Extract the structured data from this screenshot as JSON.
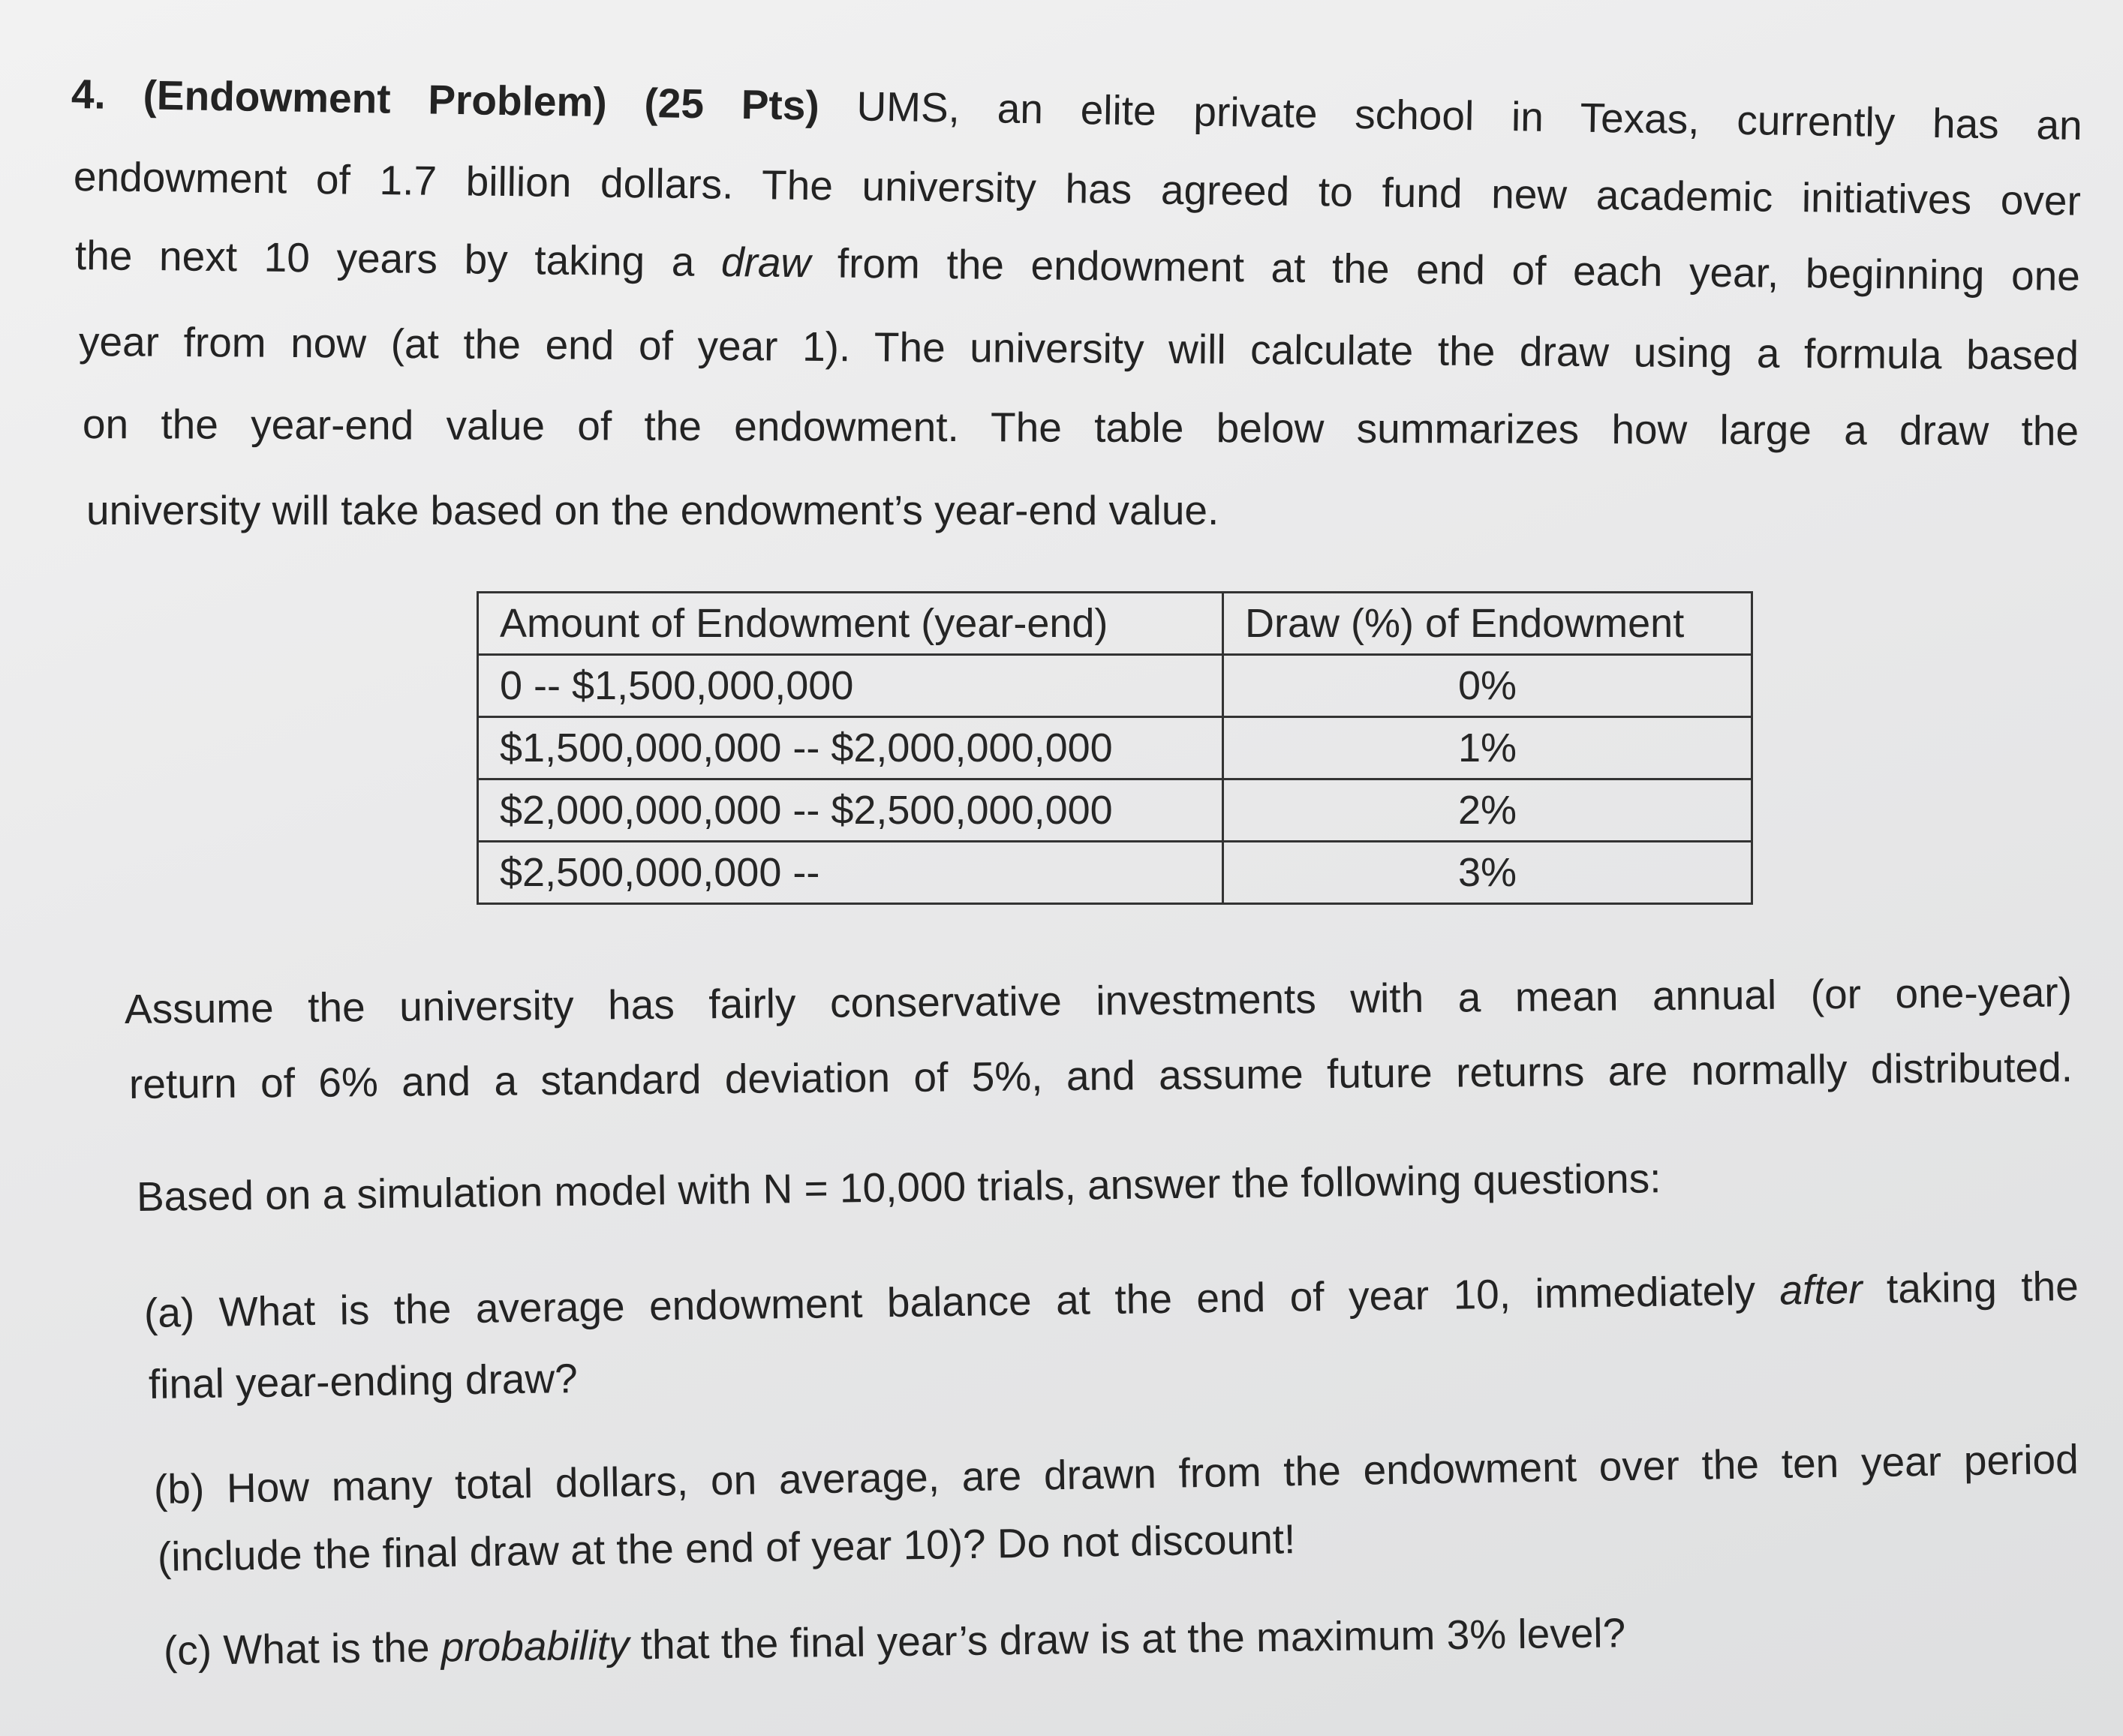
{
  "problem": {
    "heading": "4. (Endowment Problem) (25 Pts)",
    "line0_rest": " UMS, an elite private school in Texas, currently has an",
    "line1": "endowment of 1.7 billion dollars. The university has agreed to fund new academic initiatives over",
    "line2_pre": "the next 10 years by taking a ",
    "line2_em": "draw",
    "line2_post": " from the endowment at the end of each year, beginning one",
    "line3": "year from now (at the end of year 1). The university will calculate the draw using a formula based",
    "line4": "on the year-end value of the endowment. The table below summarizes how large a draw the",
    "line5": "university will take based on the endowment’s year-end value."
  },
  "table": {
    "headers": [
      "Amount of Endowment (year-end)",
      "Draw (%) of Endowment"
    ],
    "rows": [
      [
        "0 -- $1,500,000,000",
        "0%"
      ],
      [
        "$1,500,000,000 -- $2,000,000,000",
        "1%"
      ],
      [
        "$2,000,000,000 -- $2,500,000,000",
        "2%"
      ],
      [
        "$2,500,000,000 --",
        "3%"
      ]
    ]
  },
  "assume": {
    "line0": "Assume the university has fairly conservative investments with a mean annual (or one-year)",
    "line1": "return of 6% and a standard deviation of 5%, and assume future returns are normally distributed."
  },
  "simulation": "Based on a simulation model with N = 10,000 trials, answer the following questions:",
  "questions": {
    "a_pre": "(a) What is the average endowment balance at the end of year 10, immediately ",
    "a_em": "after",
    "a_post": " taking the",
    "a_line2": "final year-ending draw?",
    "b_line1": "(b) How many total dollars, on average, are drawn from the endowment over the ten year period",
    "b_line2": "(include the final draw at the end of year 10)? Do not discount!",
    "c_pre": "(c) What is the ",
    "c_em": "probability",
    "c_post": " that the final year’s draw is at the maximum 3% level?"
  }
}
